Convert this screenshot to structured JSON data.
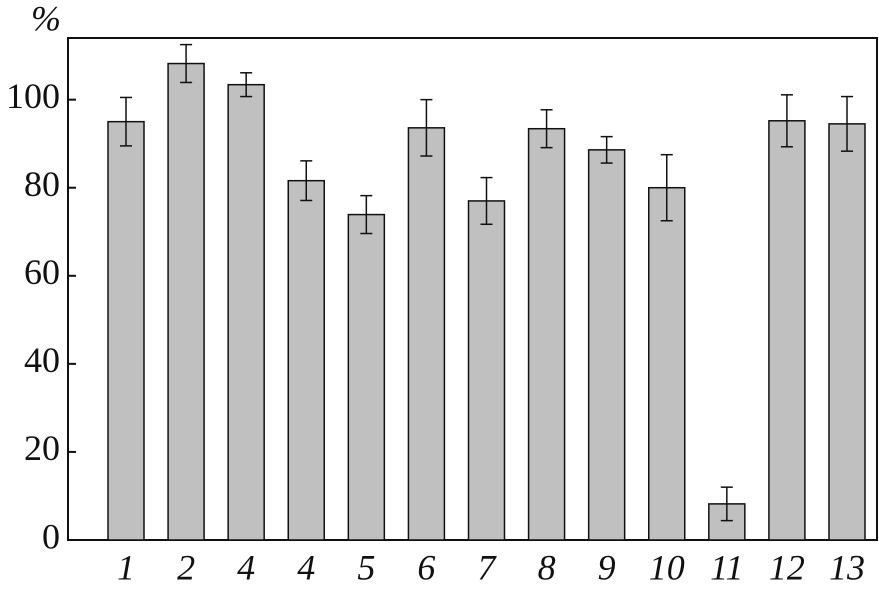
{
  "chart_data": {
    "type": "bar",
    "y_label": "%",
    "categories": [
      "1",
      "2",
      "4",
      "4",
      "5",
      "6",
      "7",
      "8",
      "9",
      "10",
      "11",
      "12",
      "13"
    ],
    "values": [
      95,
      108.2,
      103.4,
      81.6,
      73.9,
      93.6,
      77,
      93.4,
      88.6,
      80,
      8.2,
      95.2,
      94.5
    ],
    "errors": [
      5.5,
      4.3,
      2.7,
      4.5,
      4.3,
      6.4,
      5.3,
      4.3,
      3,
      7.5,
      3.8,
      5.9,
      6.2
    ],
    "color": "#c0c0c0",
    "ylim": [
      0,
      114
    ],
    "yticks": [
      0,
      20,
      40,
      60,
      80,
      100
    ],
    "grid": false
  }
}
